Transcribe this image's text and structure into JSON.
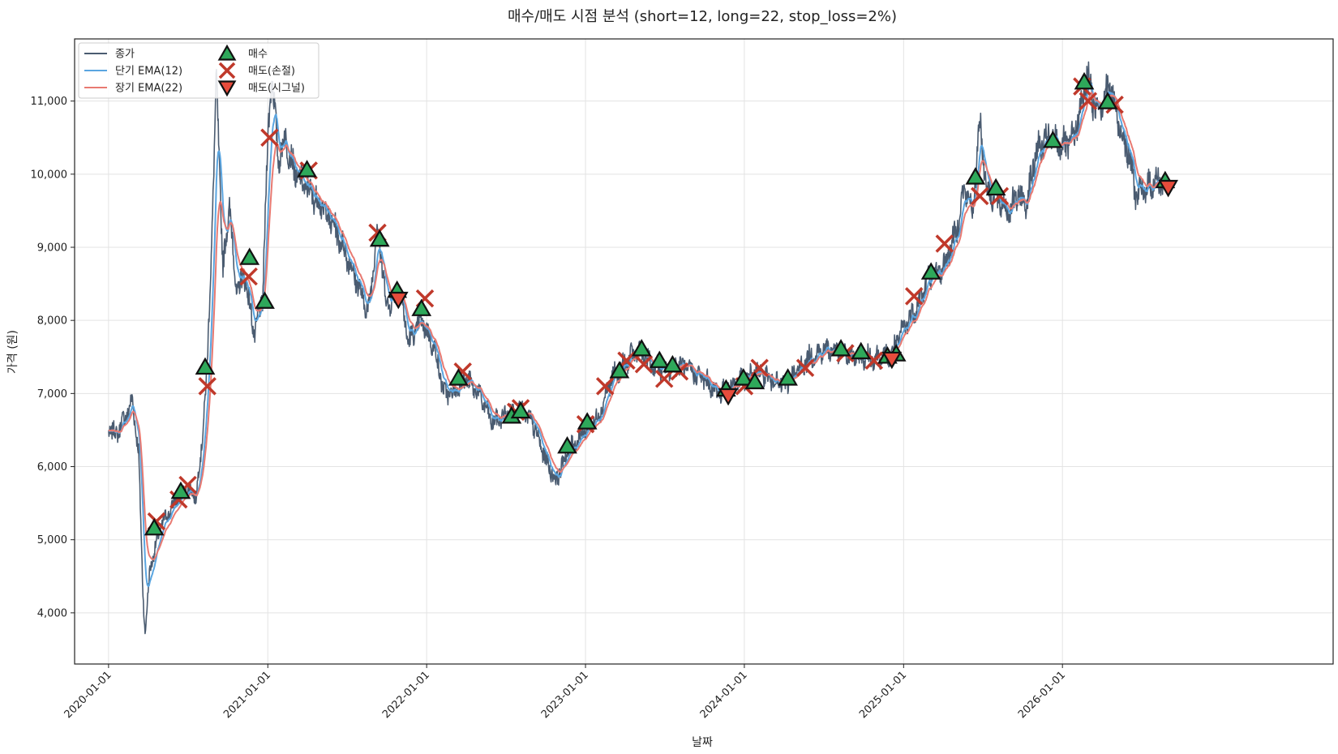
{
  "chart_data": {
    "type": "line",
    "title": "매수/매도 시점 분석 (short=12, long=22, stop_loss=2%)",
    "xlabel": "날짜",
    "ylabel": "가격 (원)",
    "x_range": [
      "2019-10-15",
      "2027-09-15"
    ],
    "ylim": [
      3300,
      11850
    ],
    "yticks": [
      4000,
      5000,
      6000,
      7000,
      8000,
      9000,
      10000,
      11000
    ],
    "ytick_labels": [
      "4,000",
      "5,000",
      "6,000",
      "7,000",
      "8,000",
      "9,000",
      "10,000",
      "11,000"
    ],
    "xticks": [
      "2020-01-01",
      "2021-01-01",
      "2022-01-01",
      "2023-01-01",
      "2024-01-01",
      "2025-01-01",
      "2026-01-01"
    ],
    "grid": true,
    "legend_placement": "top-left",
    "legend": [
      {
        "name": "종가",
        "kind": "line",
        "color": "#4a5b70"
      },
      {
        "name": "단기 EMA(12)",
        "kind": "line",
        "color": "#5aa5e0"
      },
      {
        "name": "장기 EMA(22)",
        "kind": "line",
        "color": "#e87a72"
      },
      {
        "name": "매수",
        "kind": "triangle-up",
        "color": "#2ea85a"
      },
      {
        "name": "매도(손절)",
        "kind": "x",
        "color": "#c0392b"
      },
      {
        "name": "매도(시그널)",
        "kind": "triangle-down",
        "color": "#e74c3c"
      }
    ],
    "colors": {
      "close": "#4a5b70",
      "ema_short": "#5aa5e0",
      "ema_long": "#e87a72",
      "buy": "#2ea85a",
      "stop": "#c0392b",
      "signal": "#e74c3c"
    },
    "price_anchors": [
      [
        "2020-01-01",
        6500
      ],
      [
        "2020-01-20",
        6450
      ],
      [
        "2020-02-10",
        6700
      ],
      [
        "2020-02-25",
        6900
      ],
      [
        "2020-03-10",
        6200
      ],
      [
        "2020-03-20",
        4300
      ],
      [
        "2020-03-25",
        3700
      ],
      [
        "2020-04-05",
        4600
      ],
      [
        "2020-05-01",
        5200
      ],
      [
        "2020-06-01",
        5500
      ],
      [
        "2020-07-01",
        5700
      ],
      [
        "2020-07-20",
        5600
      ],
      [
        "2020-08-01",
        6200
      ],
      [
        "2020-08-15",
        7400
      ],
      [
        "2020-08-25",
        9100
      ],
      [
        "2020-09-05",
        11300
      ],
      [
        "2020-09-20",
        8700
      ],
      [
        "2020-10-05",
        9600
      ],
      [
        "2020-10-20",
        8400
      ],
      [
        "2020-11-10",
        8600
      ],
      [
        "2020-12-01",
        7800
      ],
      [
        "2020-12-20",
        8300
      ],
      [
        "2021-01-01",
        10500
      ],
      [
        "2021-01-10",
        11400
      ],
      [
        "2021-01-25",
        10200
      ],
      [
        "2021-02-10",
        10500
      ],
      [
        "2021-03-05",
        10000
      ],
      [
        "2021-04-01",
        9800
      ],
      [
        "2021-05-01",
        9600
      ],
      [
        "2021-06-01",
        9300
      ],
      [
        "2021-07-01",
        8900
      ],
      [
        "2021-08-01",
        8400
      ],
      [
        "2021-08-20",
        8100
      ],
      [
        "2021-09-10",
        9300
      ],
      [
        "2021-10-01",
        8200
      ],
      [
        "2021-11-01",
        8400
      ],
      [
        "2021-11-20",
        7700
      ],
      [
        "2021-12-20",
        8000
      ],
      [
        "2022-01-20",
        7600
      ],
      [
        "2022-02-10",
        7000
      ],
      [
        "2022-03-01",
        7000
      ],
      [
        "2022-04-01",
        7200
      ],
      [
        "2022-05-01",
        7000
      ],
      [
        "2022-06-01",
        6600
      ],
      [
        "2022-07-01",
        6700
      ],
      [
        "2022-08-01",
        6800
      ],
      [
        "2022-09-01",
        6600
      ],
      [
        "2022-10-01",
        6100
      ],
      [
        "2022-10-25",
        5800
      ],
      [
        "2022-11-20",
        6200
      ],
      [
        "2023-01-01",
        6500
      ],
      [
        "2023-02-01",
        6700
      ],
      [
        "2023-03-01",
        7200
      ],
      [
        "2023-04-01",
        7400
      ],
      [
        "2023-05-01",
        7600
      ],
      [
        "2023-06-01",
        7400
      ],
      [
        "2023-07-01",
        7300
      ],
      [
        "2023-08-01",
        7400
      ],
      [
        "2023-09-01",
        7300
      ],
      [
        "2023-10-01",
        7200
      ],
      [
        "2023-11-01",
        7000
      ],
      [
        "2023-12-01",
        7100
      ],
      [
        "2024-01-01",
        7200
      ],
      [
        "2024-02-01",
        7300
      ],
      [
        "2024-03-01",
        7200
      ],
      [
        "2024-04-01",
        7100
      ],
      [
        "2024-05-01",
        7300
      ],
      [
        "2024-06-01",
        7500
      ],
      [
        "2024-07-01",
        7600
      ],
      [
        "2024-08-01",
        7600
      ],
      [
        "2024-09-01",
        7500
      ],
      [
        "2024-10-01",
        7500
      ],
      [
        "2024-11-01",
        7500
      ],
      [
        "2024-12-01",
        7500
      ],
      [
        "2025-01-01",
        7900
      ],
      [
        "2025-02-01",
        8200
      ],
      [
        "2025-03-01",
        8600
      ],
      [
        "2025-04-01",
        8700
      ],
      [
        "2025-05-01",
        9200
      ],
      [
        "2025-05-20",
        9800
      ],
      [
        "2025-06-10",
        9500
      ],
      [
        "2025-06-25",
        10800
      ],
      [
        "2025-07-10",
        9800
      ],
      [
        "2025-08-10",
        9600
      ],
      [
        "2025-09-01",
        9500
      ],
      [
        "2025-09-20",
        9700
      ],
      [
        "2025-10-10",
        9600
      ],
      [
        "2025-11-01",
        10300
      ],
      [
        "2025-12-01",
        10500
      ],
      [
        "2026-01-01",
        10400
      ],
      [
        "2026-01-20",
        10400
      ],
      [
        "2026-02-10",
        10800
      ],
      [
        "2026-03-01",
        11400
      ],
      [
        "2026-03-15",
        10900
      ],
      [
        "2026-04-01",
        11000
      ],
      [
        "2026-04-20",
        11200
      ],
      [
        "2026-05-10",
        10700
      ],
      [
        "2026-06-01",
        10300
      ],
      [
        "2026-06-20",
        9700
      ],
      [
        "2026-07-10",
        9800
      ],
      [
        "2026-08-01",
        9900
      ],
      [
        "2026-08-20",
        9900
      ]
    ],
    "buy_markers": [
      [
        "2020-04-15",
        5150
      ],
      [
        "2020-06-15",
        5650
      ],
      [
        "2020-08-10",
        7350
      ],
      [
        "2020-11-20",
        8850
      ],
      [
        "2020-12-25",
        8250
      ],
      [
        "2021-04-01",
        10050
      ],
      [
        "2021-09-15",
        9100
      ],
      [
        "2021-10-25",
        8400
      ],
      [
        "2021-12-20",
        8150
      ],
      [
        "2022-03-15",
        7200
      ],
      [
        "2022-07-15",
        6680
      ],
      [
        "2022-08-05",
        6750
      ],
      [
        "2022-11-20",
        6270
      ],
      [
        "2023-01-05",
        6600
      ],
      [
        "2023-03-20",
        7300
      ],
      [
        "2023-05-10",
        7600
      ],
      [
        "2023-06-20",
        7440
      ],
      [
        "2023-07-20",
        7380
      ],
      [
        "2023-11-20",
        7050
      ],
      [
        "2023-12-30",
        7200
      ],
      [
        "2024-01-25",
        7150
      ],
      [
        "2024-04-10",
        7200
      ],
      [
        "2024-08-10",
        7600
      ],
      [
        "2024-09-25",
        7560
      ],
      [
        "2024-11-25",
        7500
      ],
      [
        "2024-12-15",
        7530
      ],
      [
        "2025-03-05",
        8650
      ],
      [
        "2025-06-15",
        9950
      ],
      [
        "2025-08-01",
        9800
      ],
      [
        "2025-12-10",
        10450
      ],
      [
        "2026-02-20",
        11250
      ],
      [
        "2026-04-15",
        10980
      ],
      [
        "2026-08-25",
        9900
      ]
    ],
    "stop_markers": [
      [
        "2020-04-20",
        5250
      ],
      [
        "2020-06-10",
        5550
      ],
      [
        "2020-07-01",
        5750
      ],
      [
        "2020-08-15",
        7100
      ],
      [
        "2020-11-18",
        8600
      ],
      [
        "2021-01-05",
        10500
      ],
      [
        "2021-04-05",
        10050
      ],
      [
        "2021-09-10",
        9200
      ],
      [
        "2021-12-28",
        8300
      ],
      [
        "2022-03-25",
        7300
      ],
      [
        "2022-07-25",
        6750
      ],
      [
        "2022-08-05",
        6800
      ],
      [
        "2023-01-01",
        6580
      ],
      [
        "2023-02-15",
        7100
      ],
      [
        "2023-04-05",
        7450
      ],
      [
        "2023-05-15",
        7400
      ],
      [
        "2023-07-01",
        7200
      ],
      [
        "2023-08-05",
        7300
      ],
      [
        "2024-01-01",
        7100
      ],
      [
        "2024-02-05",
        7350
      ],
      [
        "2024-05-20",
        7350
      ],
      [
        "2024-08-20",
        7550
      ],
      [
        "2024-10-25",
        7450
      ],
      [
        "2025-01-25",
        8330
      ],
      [
        "2025-04-05",
        9050
      ],
      [
        "2025-06-25",
        9700
      ],
      [
        "2025-08-10",
        9700
      ],
      [
        "2026-02-15",
        11200
      ],
      [
        "2026-03-01",
        11000
      ],
      [
        "2026-05-01",
        10950
      ]
    ],
    "signal_markers": [
      [
        "2021-10-28",
        8300
      ],
      [
        "2023-11-25",
        6980
      ],
      [
        "2024-12-05",
        7480
      ],
      [
        "2026-09-01",
        9830
      ]
    ]
  }
}
